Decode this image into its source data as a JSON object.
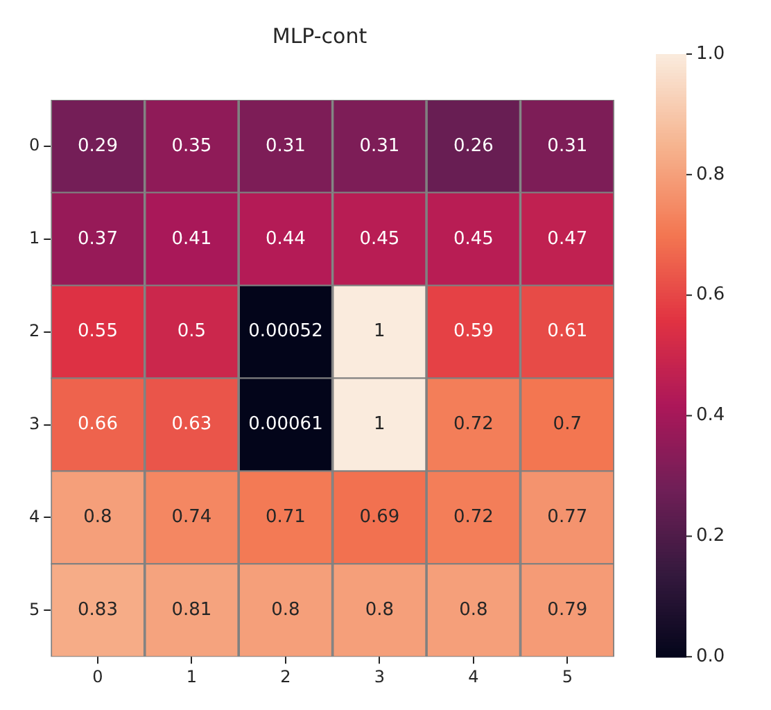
{
  "chart_data": {
    "type": "heatmap",
    "title": "MLP-cont",
    "categories": [
      "0",
      "1",
      "2",
      "3",
      "4",
      "5"
    ],
    "y_categories": [
      "0",
      "1",
      "2",
      "3",
      "4",
      "5"
    ],
    "cells": [
      [
        0.29,
        0.35,
        0.31,
        0.31,
        0.26,
        0.31
      ],
      [
        0.37,
        0.41,
        0.44,
        0.45,
        0.45,
        0.47
      ],
      [
        0.55,
        0.5,
        0.00052,
        1,
        0.59,
        0.61
      ],
      [
        0.66,
        0.63,
        0.00061,
        1,
        0.72,
        0.7
      ],
      [
        0.8,
        0.74,
        0.71,
        0.69,
        0.72,
        0.77
      ],
      [
        0.83,
        0.81,
        0.8,
        0.8,
        0.8,
        0.79
      ]
    ],
    "data_labels": true,
    "clim": [
      0,
      1
    ],
    "cticks": [
      {
        "value": 0,
        "label": "0.0"
      },
      {
        "value": 0.2,
        "label": "0.2"
      },
      {
        "value": 0.4,
        "label": "0.4"
      },
      {
        "value": 0.6,
        "label": "0.6"
      },
      {
        "value": 0.8,
        "label": "0.8"
      },
      {
        "value": 1,
        "label": "1.0"
      }
    ]
  }
}
